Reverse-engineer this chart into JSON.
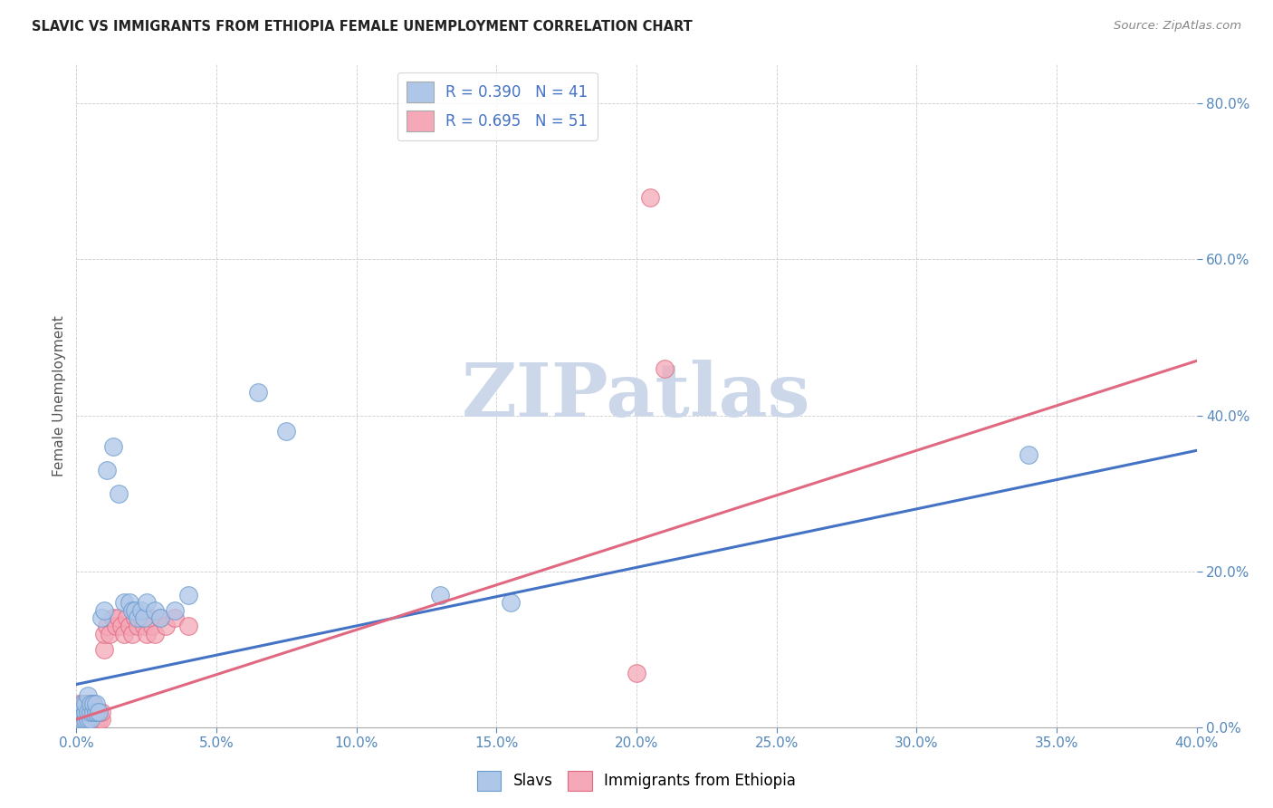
{
  "title": "SLAVIC VS IMMIGRANTS FROM ETHIOPIA FEMALE UNEMPLOYMENT CORRELATION CHART",
  "source": "Source: ZipAtlas.com",
  "xlim": [
    0.0,
    0.4
  ],
  "ylim": [
    0.0,
    0.85
  ],
  "ylabel": "Female Unemployment",
  "legend_entries": [
    {
      "label": "Slavs",
      "R": "0.390",
      "N": "41"
    },
    {
      "label": "Immigrants from Ethiopia",
      "R": "0.695",
      "N": "51"
    }
  ],
  "slavs_x": [
    0.001,
    0.001,
    0.002,
    0.002,
    0.002,
    0.003,
    0.003,
    0.003,
    0.004,
    0.004,
    0.004,
    0.005,
    0.005,
    0.005,
    0.006,
    0.006,
    0.007,
    0.007,
    0.008,
    0.009,
    0.01,
    0.011,
    0.013,
    0.015,
    0.017,
    0.019,
    0.02,
    0.021,
    0.022,
    0.023,
    0.024,
    0.025,
    0.028,
    0.03,
    0.065,
    0.075,
    0.13,
    0.155,
    0.34,
    0.035,
    0.04
  ],
  "slavs_y": [
    0.01,
    0.02,
    0.01,
    0.02,
    0.03,
    0.01,
    0.02,
    0.03,
    0.01,
    0.02,
    0.04,
    0.01,
    0.02,
    0.03,
    0.02,
    0.03,
    0.02,
    0.03,
    0.02,
    0.14,
    0.15,
    0.33,
    0.36,
    0.3,
    0.16,
    0.16,
    0.15,
    0.15,
    0.14,
    0.15,
    0.14,
    0.16,
    0.15,
    0.14,
    0.43,
    0.38,
    0.17,
    0.16,
    0.35,
    0.15,
    0.17
  ],
  "ethiopia_x": [
    0.001,
    0.001,
    0.001,
    0.002,
    0.002,
    0.002,
    0.003,
    0.003,
    0.003,
    0.004,
    0.004,
    0.004,
    0.005,
    0.005,
    0.005,
    0.006,
    0.006,
    0.006,
    0.007,
    0.007,
    0.008,
    0.008,
    0.009,
    0.009,
    0.01,
    0.01,
    0.011,
    0.012,
    0.013,
    0.014,
    0.015,
    0.016,
    0.017,
    0.018,
    0.019,
    0.02,
    0.021,
    0.022,
    0.023,
    0.024,
    0.025,
    0.026,
    0.027,
    0.028,
    0.03,
    0.032,
    0.035,
    0.04,
    0.2,
    0.205,
    0.21
  ],
  "ethiopia_y": [
    0.01,
    0.02,
    0.03,
    0.01,
    0.02,
    0.03,
    0.01,
    0.02,
    0.03,
    0.01,
    0.02,
    0.03,
    0.01,
    0.02,
    0.03,
    0.01,
    0.02,
    0.03,
    0.01,
    0.02,
    0.01,
    0.02,
    0.01,
    0.02,
    0.1,
    0.12,
    0.13,
    0.12,
    0.14,
    0.13,
    0.14,
    0.13,
    0.12,
    0.14,
    0.13,
    0.12,
    0.14,
    0.13,
    0.14,
    0.13,
    0.12,
    0.14,
    0.13,
    0.12,
    0.14,
    0.13,
    0.14,
    0.13,
    0.07,
    0.68,
    0.46
  ],
  "slavs_line_color": "#4472c4",
  "ethiopia_line_color": "#e06880",
  "slavs_scatter_color": "#aec6e8",
  "slavs_edge_color": "#6699cc",
  "ethiopia_scatter_color": "#f4a8b8",
  "ethiopia_edge_color": "#e06880",
  "background_color": "#ffffff",
  "grid_color": "#cccccc",
  "title_color": "#222222",
  "axis_tick_color": "#5588bb",
  "watermark": "ZIPatlas",
  "watermark_color": "#ccd8ea"
}
